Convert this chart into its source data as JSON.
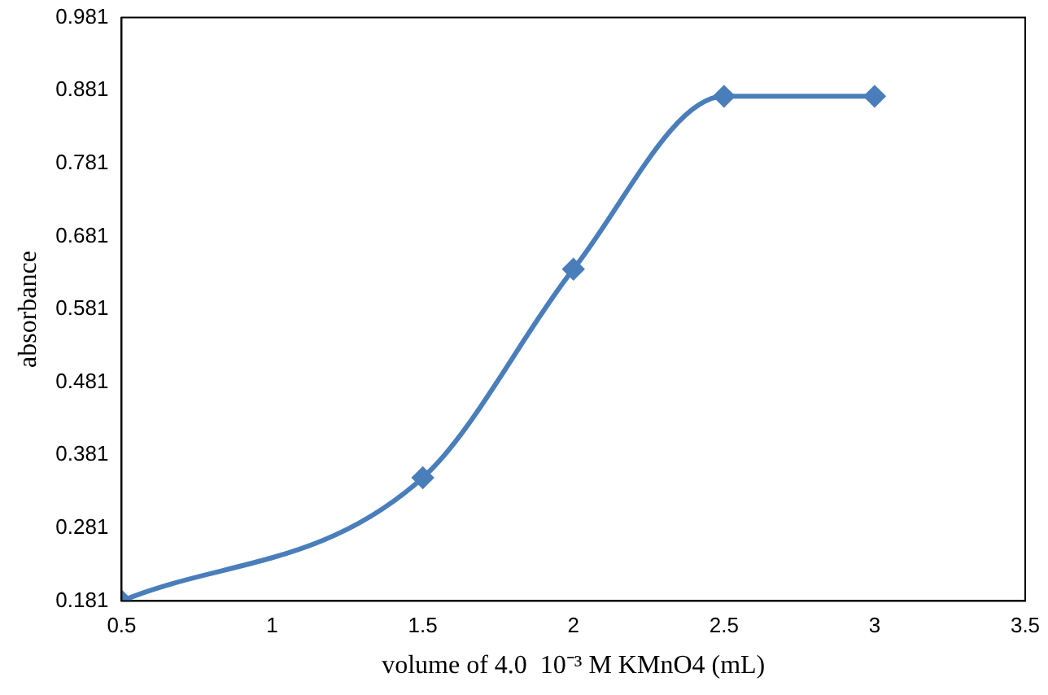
{
  "chart_data": {
    "type": "line",
    "xlabel": "volume of 4.0  10⁻³ M KMnO4 (mL)",
    "ylabel": "absorbance",
    "x": [
      0.5,
      1.5,
      2,
      2.5,
      3
    ],
    "series": [
      {
        "color": "#4a7ebb",
        "values": [
          0.181,
          0.35,
          0.636,
          0.873,
          0.873
        ]
      }
    ],
    "xlim": [
      0.5,
      3.5
    ],
    "xticks": [
      0.5,
      1,
      1.5,
      2,
      2.5,
      3,
      3.5
    ],
    "ylim": [
      0.181,
      0.981
    ],
    "yticks": [
      0.181,
      0.281,
      0.381,
      0.481,
      0.581,
      0.681,
      0.781,
      0.881,
      0.981
    ],
    "grid": false,
    "legend": false,
    "marker": "diamond",
    "line_style": "solid"
  }
}
